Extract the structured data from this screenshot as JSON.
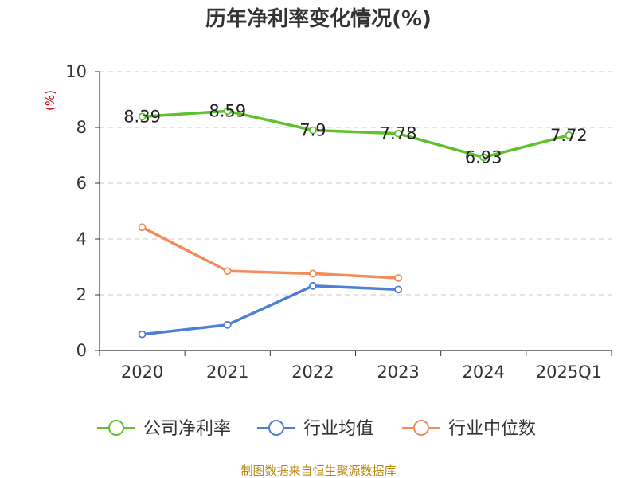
{
  "chart_data": {
    "type": "line",
    "title": "历年净利率变化情况(%)",
    "unit": "(%)",
    "categories": [
      "2020",
      "2021",
      "2022",
      "2023",
      "2024",
      "2025Q1"
    ],
    "ylim": [
      0,
      10
    ],
    "yticks": [
      "0",
      "2",
      "4",
      "6",
      "8",
      "10"
    ],
    "grid": true,
    "legend_position": "bottom",
    "series": [
      {
        "name": "公司净利率",
        "color": "#5fc12b",
        "values": [
          8.39,
          8.59,
          7.9,
          7.78,
          6.93,
          7.72
        ],
        "labels": [
          "8.39",
          "8.59",
          "7.9",
          "7.78",
          "6.93",
          "7.72"
        ]
      },
      {
        "name": "行业均值",
        "color": "#4e7fd7",
        "values": [
          0.58,
          0.92,
          2.32,
          2.19,
          null,
          null
        ]
      },
      {
        "name": "行业中位数",
        "color": "#f28c58",
        "values": [
          4.42,
          2.85,
          2.76,
          2.6,
          null,
          null
        ]
      }
    ],
    "source": "制图数据来自恒生聚源数据库"
  }
}
